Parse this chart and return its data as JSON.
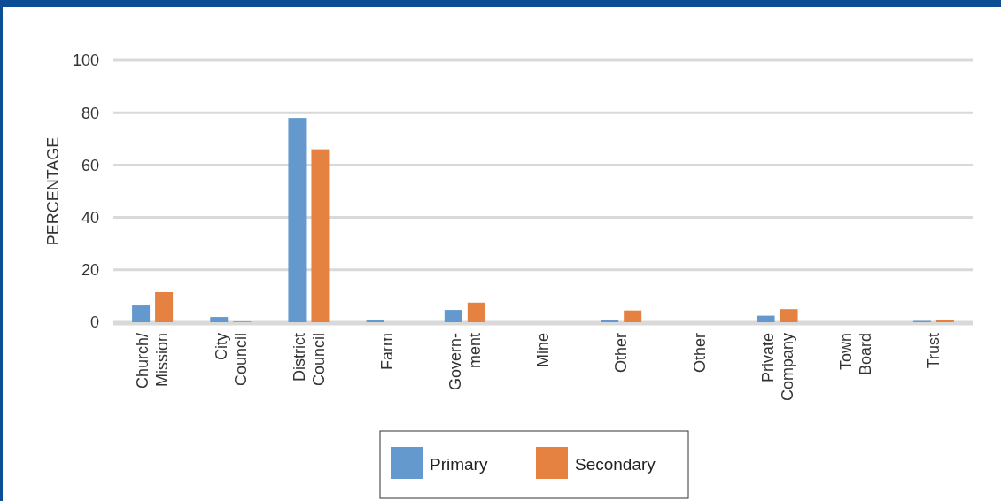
{
  "chart_data": {
    "type": "bar",
    "ylabel": "PERCENTAGE",
    "categories": [
      "Church/ Mission",
      "City Council",
      "District Council",
      "Farm",
      "Govern- ment",
      "Mine",
      "Other",
      "Other",
      "Private Company",
      "Town Board",
      "Trust"
    ],
    "series": [
      {
        "name": "Primary",
        "color": "#6399cc",
        "values": [
          6.4,
          2,
          78,
          1,
          4.7,
          0,
          0.8,
          0,
          2.5,
          0,
          0.5
        ]
      },
      {
        "name": "Secondary",
        "color": "#e58141",
        "values": [
          11.5,
          0.3,
          66,
          0,
          7.5,
          0,
          4.5,
          0,
          5,
          0,
          1
        ]
      }
    ],
    "ylim": [
      0,
      100
    ],
    "yticks": [
      0,
      20,
      40,
      60,
      80,
      100
    ],
    "grid": "y",
    "legend": "bottom"
  }
}
